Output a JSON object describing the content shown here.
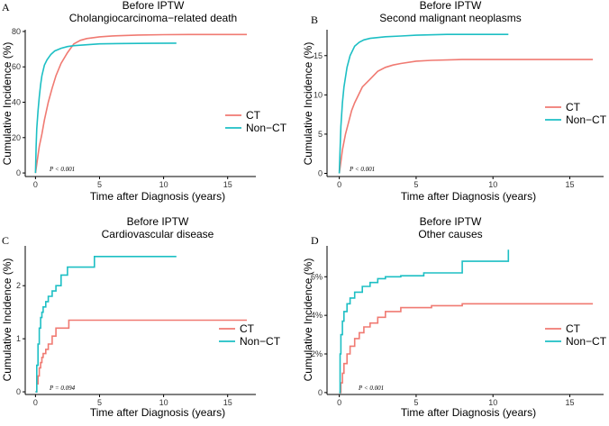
{
  "colors": {
    "ct": "#f07a72",
    "nonct": "#1dbfc4",
    "axis": "#000000"
  },
  "chart_data": [
    {
      "type": "line",
      "panel": "A",
      "title": "Before IPTW",
      "subtitle": "Cholangiocarcinoma−related death",
      "xlabel": "Time after Diagnosis (years)",
      "ylabel": "Cumulative Incidence (%)",
      "xlim": [
        -0.8,
        17.2
      ],
      "ylim": [
        -2,
        81
      ],
      "xticks": [
        0,
        5,
        10,
        15
      ],
      "yticks": [
        0,
        20,
        40,
        60,
        80
      ],
      "ytick_labels": [
        "0",
        "20",
        "40",
        "60",
        "80"
      ],
      "pvalue": "P < 0.001",
      "legend": [
        "CT",
        "Non−CT"
      ],
      "series": [
        {
          "name": "CT",
          "step": false,
          "x": [
            0,
            0.1,
            0.2,
            0.3,
            0.5,
            0.7,
            1.0,
            1.3,
            1.6,
            2.0,
            2.5,
            3.0,
            3.5,
            4.0,
            5.0,
            6.0,
            8.0,
            10.0,
            12.0,
            16.5
          ],
          "y": [
            0,
            5,
            10,
            15,
            22,
            30,
            40,
            48,
            55,
            62,
            68,
            73,
            75,
            76,
            77,
            77.5,
            78,
            78.2,
            78.3,
            78.3
          ]
        },
        {
          "name": "Non−CT",
          "step": false,
          "x": [
            0,
            0.05,
            0.1,
            0.2,
            0.3,
            0.4,
            0.5,
            0.7,
            0.9,
            1.2,
            1.5,
            2.0,
            2.5,
            3.0,
            4.0,
            5.0,
            7.0,
            9.0,
            11.0
          ],
          "y": [
            0,
            15,
            25,
            35,
            43,
            50,
            55,
            61,
            64,
            67,
            69,
            70.5,
            71.5,
            72,
            72.5,
            73,
            73.2,
            73.3,
            73.4
          ]
        }
      ]
    },
    {
      "type": "line",
      "panel": "B",
      "title": "Before IPTW",
      "subtitle": "Second malignant neoplasms",
      "xlabel": "Time after Diagnosis (years)",
      "ylabel": "Cumulative Incidence (%)",
      "xlim": [
        -0.8,
        17.2
      ],
      "ylim": [
        -0.4,
        18.3
      ],
      "xticks": [
        0,
        5,
        10,
        15
      ],
      "yticks": [
        0,
        5,
        10,
        15
      ],
      "ytick_labels": [
        "0",
        "5",
        "10",
        "15"
      ],
      "pvalue": "P < 0.001",
      "legend": [
        "CT",
        "Non−CT"
      ],
      "series": [
        {
          "name": "CT",
          "step": false,
          "x": [
            0,
            0.1,
            0.2,
            0.4,
            0.6,
            0.8,
            1.0,
            1.5,
            2.0,
            2.5,
            3.0,
            3.5,
            4.0,
            5.0,
            6.0,
            8.0,
            12.0,
            16.5
          ],
          "y": [
            0,
            1.5,
            3,
            5,
            6.5,
            8,
            9,
            11,
            12,
            13,
            13.5,
            13.8,
            14,
            14.3,
            14.4,
            14.5,
            14.5,
            14.5
          ]
        },
        {
          "name": "Non−CT",
          "step": false,
          "x": [
            0,
            0.05,
            0.1,
            0.2,
            0.3,
            0.5,
            0.7,
            1.0,
            1.3,
            1.6,
            2.0,
            2.5,
            3.0,
            4.0,
            5.0,
            7.0,
            9.0,
            11.0
          ],
          "y": [
            0,
            3,
            6,
            9,
            11,
            13.5,
            15,
            16.2,
            16.7,
            17,
            17.2,
            17.3,
            17.4,
            17.5,
            17.6,
            17.7,
            17.7,
            17.7
          ]
        }
      ]
    },
    {
      "type": "line",
      "panel": "C",
      "title": "Before IPTW",
      "subtitle": "Cardiovascular disease",
      "xlabel": "Time after Diagnosis (years)",
      "ylabel": "Cumulative Incidence (%)",
      "xlim": [
        -0.8,
        17.2
      ],
      "ylim": [
        -0.05,
        2.75
      ],
      "xticks": [
        0,
        5,
        10,
        15
      ],
      "yticks": [
        0,
        1,
        2
      ],
      "ytick_labels": [
        "0",
        "1",
        "2"
      ],
      "pvalue": "P = 0.094",
      "legend": [
        "CT",
        "Non−CT"
      ],
      "series": [
        {
          "name": "CT",
          "step": true,
          "x": [
            0,
            0.1,
            0.2,
            0.3,
            0.4,
            0.5,
            0.6,
            0.8,
            1.0,
            1.3,
            1.6,
            2.6,
            16.5
          ],
          "y": [
            0,
            0.15,
            0.3,
            0.45,
            0.55,
            0.65,
            0.72,
            0.8,
            0.9,
            1.05,
            1.2,
            1.35,
            1.35
          ]
        },
        {
          "name": "Non−CT",
          "step": true,
          "x": [
            0,
            0.1,
            0.2,
            0.3,
            0.4,
            0.5,
            0.6,
            0.8,
            1.0,
            1.3,
            1.6,
            2.0,
            2.5,
            4.6,
            11.0
          ],
          "y": [
            0,
            0.5,
            0.9,
            1.2,
            1.4,
            1.5,
            1.6,
            1.7,
            1.8,
            1.9,
            2.0,
            2.2,
            2.35,
            2.55,
            2.55
          ]
        }
      ]
    },
    {
      "type": "line",
      "panel": "D",
      "title": "Before IPTW",
      "subtitle": "Other causes",
      "xlabel": "Time after Diagnosis (years)",
      "ylabel": "Cumulative Incidence (%)",
      "xlim": [
        -0.8,
        17.2
      ],
      "ylim": [
        -0.1,
        7.6
      ],
      "xticks": [
        0,
        5,
        10,
        15
      ],
      "yticks": [
        0,
        2,
        4,
        6
      ],
      "ytick_labels": [
        "0",
        "2%",
        "4%",
        "6%"
      ],
      "pvalue": "P < 0.001",
      "legend": [
        "CT",
        "Non−CT"
      ],
      "series": [
        {
          "name": "CT",
          "step": true,
          "x": [
            0,
            0.1,
            0.2,
            0.3,
            0.5,
            0.7,
            1.0,
            1.3,
            1.6,
            2.0,
            2.5,
            3.0,
            4.0,
            6.0,
            8.0,
            16.5
          ],
          "y": [
            0,
            0.5,
            1.0,
            1.5,
            2.0,
            2.4,
            2.8,
            3.1,
            3.4,
            3.6,
            3.9,
            4.2,
            4.4,
            4.5,
            4.6,
            4.6
          ]
        },
        {
          "name": "Non−CT",
          "step": true,
          "x": [
            0,
            0.05,
            0.1,
            0.2,
            0.3,
            0.5,
            0.7,
            1.0,
            1.5,
            2.0,
            2.5,
            3.0,
            4.0,
            5.5,
            8.0,
            11.0
          ],
          "y": [
            0,
            2.0,
            3.0,
            3.7,
            4.2,
            4.6,
            4.9,
            5.2,
            5.5,
            5.7,
            5.9,
            6.0,
            6.05,
            6.2,
            6.8,
            7.4
          ]
        }
      ]
    }
  ]
}
